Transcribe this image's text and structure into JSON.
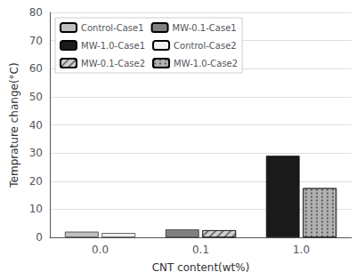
{
  "chart_data": {
    "type": "bar",
    "categories": [
      "0.0",
      "0.1",
      "1.0"
    ],
    "xlabel": "CNT content(wt%)",
    "ylabel": "Temprature change(°C)",
    "series": [
      {
        "name": "Control-Case1",
        "color": "#c0c0c0",
        "values": [
          2.0,
          null,
          null
        ]
      },
      {
        "name": "MW-0.1-Case1",
        "color": "#808080",
        "values": [
          null,
          2.8,
          null
        ]
      },
      {
        "name": "MW-1.0-Case1",
        "color": "#1a1a1a",
        "values": [
          null,
          null,
          29.0
        ]
      },
      {
        "name": "Control-Case2",
        "color": "#f0f0f0",
        "values": [
          1.5,
          null,
          null
        ]
      },
      {
        "name": "MW-0.1-Case2",
        "color": "#d0d0d0",
        "values": [
          null,
          2.5,
          null
        ]
      },
      {
        "name": "MW-1.0-Case2",
        "color": "#b0b0b0",
        "values": [
          null,
          null,
          17.5
        ]
      }
    ],
    "ylim": [
      0,
      80
    ],
    "yticks": [
      0,
      10,
      20,
      30,
      40,
      50,
      60,
      70,
      80
    ],
    "grid": true,
    "legend": "upper left"
  }
}
